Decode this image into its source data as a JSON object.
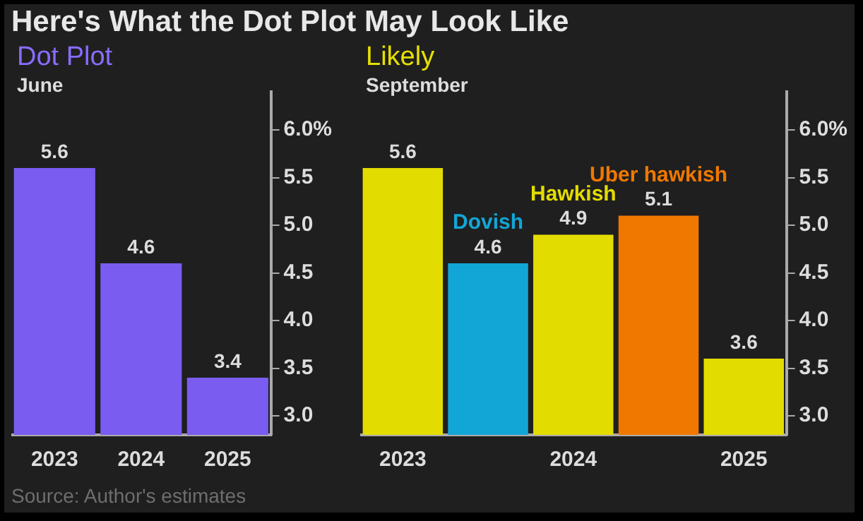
{
  "chart_data": [
    {
      "type": "bar",
      "title": "Dot Plot",
      "subtitle": "June",
      "categories": [
        "2023",
        "2024",
        "2025"
      ],
      "values": [
        5.6,
        4.6,
        3.4
      ],
      "color": "#7a5cf0",
      "ylim": [
        2.8,
        6.4
      ],
      "yticks": [
        {
          "value": 3,
          "label": "3.0"
        },
        {
          "value": 3.5,
          "label": "3.5"
        },
        {
          "value": 4,
          "label": "4.0"
        },
        {
          "value": 4.5,
          "label": "4.5"
        },
        {
          "value": 5,
          "label": "5.0"
        },
        {
          "value": 5.5,
          "label": "5.5"
        },
        {
          "value": 6,
          "label": "6.0%"
        }
      ],
      "data_labels": true,
      "grid": false,
      "legend": false,
      "annotations": [
        "Here's What the Dot Plot May Look Like",
        "Source: Author's estimates"
      ]
    },
    {
      "type": "bar",
      "title": "Likely",
      "subtitle": "September",
      "categories": [
        "2023",
        null,
        "2024",
        null,
        "2025"
      ],
      "series": [
        {
          "values": [
            5.6,
            null,
            null,
            null,
            3.6
          ],
          "color": "#e3dc00"
        },
        {
          "name": "Dovish",
          "values": [
            null,
            4.6,
            null,
            null,
            null
          ],
          "color": "#12a6d6"
        },
        {
          "name": "Hawkish",
          "values": [
            null,
            null,
            4.9,
            null,
            null
          ],
          "color": "#e3dc00"
        },
        {
          "name": "Uber hawkish",
          "values": [
            null,
            null,
            null,
            5.1,
            null
          ],
          "color": "#f07800"
        }
      ],
      "ylim": [
        2.8,
        6.4
      ],
      "yticks": [
        {
          "value": 3,
          "label": "3.0"
        },
        {
          "value": 3.5,
          "label": "3.5"
        },
        {
          "value": 4,
          "label": "4.0"
        },
        {
          "value": 4.5,
          "label": "4.5"
        },
        {
          "value": 5,
          "label": "5.0"
        },
        {
          "value": 5.5,
          "label": "5.5"
        },
        {
          "value": 6,
          "label": "6.0%"
        }
      ],
      "data_labels": true,
      "grid": false,
      "legend": false
    }
  ]
}
